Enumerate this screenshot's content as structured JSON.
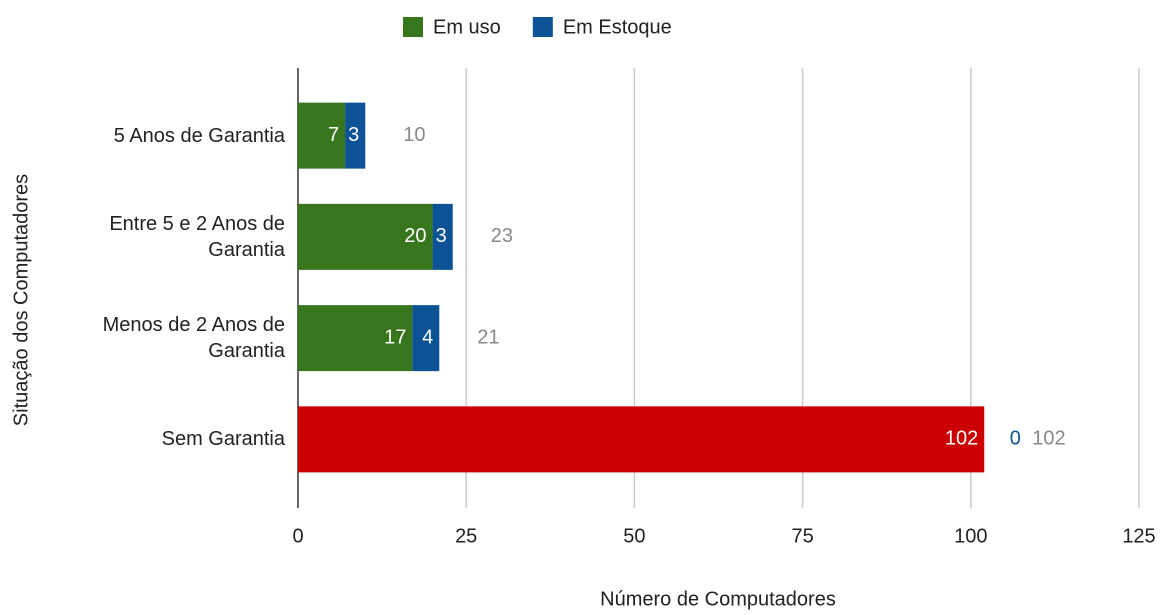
{
  "chart_data": {
    "type": "stacked_bar_horizontal",
    "categories": [
      "5 Anos de Garantia",
      "Entre 5 e 2 Anos de Garantia",
      "Menos de 2 Anos de Garantia",
      "Sem Garantia"
    ],
    "series": [
      {
        "name": "Em uso",
        "color": "#38761d",
        "colors": [
          "#38761d",
          "#38761d",
          "#38761d",
          "#cc0000"
        ],
        "values": [
          7,
          20,
          17,
          102
        ]
      },
      {
        "name": "Em Estoque",
        "color": "#0b5394",
        "values": [
          3,
          3,
          4,
          0
        ]
      }
    ],
    "totals": [
      10,
      23,
      21,
      102
    ],
    "xlim": [
      0,
      125
    ],
    "xticks": [
      0,
      25,
      50,
      75,
      100,
      125
    ],
    "xlabel": "Número de Computadores",
    "ylabel": "Situação dos Computadores",
    "grid": true,
    "legend": "top"
  }
}
